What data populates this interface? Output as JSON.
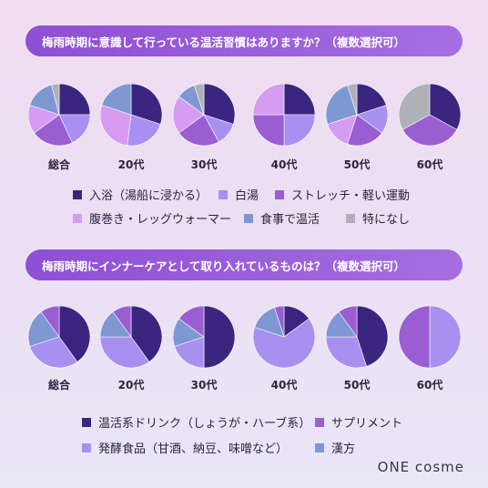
{
  "colors": {
    "dark_navy": "#3a2680",
    "light_purple": "#a890f0",
    "mid_purple": "#9a5ed2",
    "pink_purple": "#d69cf2",
    "steel_blue": "#7f98d4",
    "gray": "#b0b0b8"
  },
  "q1": {
    "title": "梅雨時期に意識して行っている温活習慣はありますか？（複数選択可）"
  },
  "q2": {
    "title": "梅雨時期にインナーケアとして取り入れているものは？（複数選択可）"
  },
  "legend1": [
    {
      "label": "入浴（湯船に浸かる）",
      "color": "#3a2680"
    },
    {
      "label": "白湯",
      "color": "#a890f0"
    },
    {
      "label": "ストレッチ・軽い運動",
      "color": "#9a5ed2"
    },
    {
      "label": "腹巻き・レッグウォーマー",
      "color": "#d69cf2"
    },
    {
      "label": "食事で温活",
      "color": "#7f98d4"
    },
    {
      "label": "特になし",
      "color": "#b0b0b8"
    }
  ],
  "legend2": [
    {
      "label": "温活系ドリンク（しょうが・ハーブ系）",
      "color": "#3a2680"
    },
    {
      "label": "サプリメント",
      "color": "#9a5ed2"
    },
    {
      "label": "発酵食品（甘酒、納豆、味噌など）",
      "color": "#a890f0"
    },
    {
      "label": "漢方",
      "color": "#7f98d4"
    }
  ],
  "chart_data": [
    {
      "type": "pie",
      "title": "梅雨時期に意識して行っている温活習慣はありますか？（複数選択可）",
      "categories": [
        "総合",
        "20代",
        "30代",
        "40代",
        "50代",
        "60代"
      ],
      "series_labels": [
        "入浴（湯船に浸かる）",
        "白湯",
        "ストレッチ・軽い運動",
        "腹巻き・レッグウォーマー",
        "食事で温活",
        "特になし"
      ],
      "pies": [
        {
          "name": "総合",
          "values": [
            25,
            18,
            22,
            15,
            16,
            4
          ]
        },
        {
          "name": "20代",
          "values": [
            30,
            22,
            0,
            28,
            20,
            0
          ]
        },
        {
          "name": "30代",
          "values": [
            30,
            12,
            23,
            20,
            10,
            5
          ]
        },
        {
          "name": "40代",
          "values": [
            25,
            25,
            25,
            25,
            0,
            0
          ]
        },
        {
          "name": "50代",
          "values": [
            20,
            15,
            20,
            15,
            25,
            5
          ]
        },
        {
          "name": "60代",
          "values": [
            33,
            0,
            34,
            0,
            0,
            33
          ]
        }
      ]
    },
    {
      "type": "pie",
      "title": "梅雨時期にインナーケアとして取り入れているものは？（複数選択可）",
      "categories": [
        "総合",
        "20代",
        "30代",
        "40代",
        "50代",
        "60代"
      ],
      "series_labels": [
        "温活系ドリンク（しょうが・ハーブ系）",
        "発酵食品（甘酒、納豆、味噌など）",
        "漢方",
        "サプリメント"
      ],
      "pies": [
        {
          "name": "総合",
          "values": [
            40,
            30,
            20,
            10
          ]
        },
        {
          "name": "20代",
          "values": [
            40,
            35,
            15,
            10
          ]
        },
        {
          "name": "30代",
          "values": [
            50,
            20,
            15,
            15
          ]
        },
        {
          "name": "40代",
          "values": [
            15,
            65,
            15,
            5
          ]
        },
        {
          "name": "50代",
          "values": [
            45,
            30,
            15,
            10
          ]
        },
        {
          "name": "60代",
          "values": [
            0,
            50,
            0,
            50
          ]
        }
      ]
    }
  ],
  "logo": "ONE cosme"
}
